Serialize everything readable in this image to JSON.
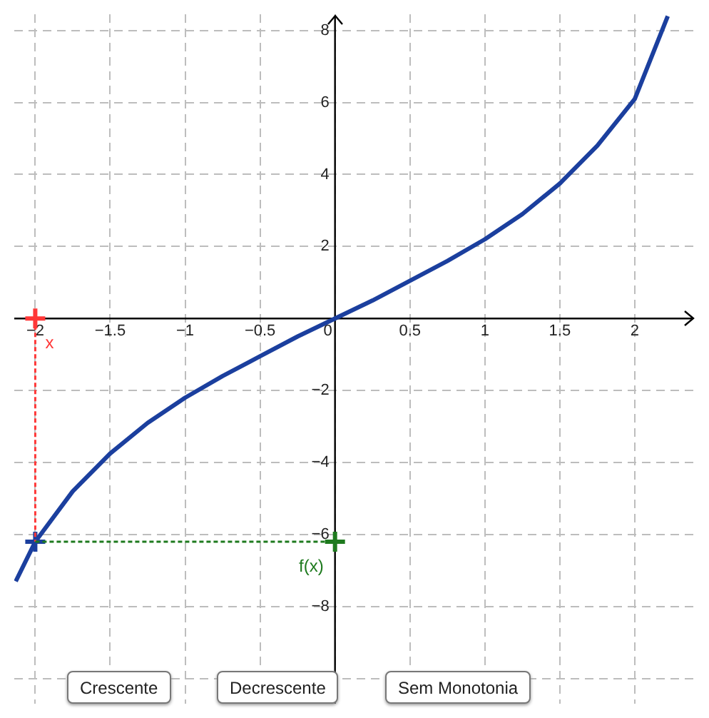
{
  "chart_data": {
    "type": "line",
    "xlim": [
      -2.14,
      2.4
    ],
    "ylim": [
      -10.7,
      8.45
    ],
    "xticks": [
      -2,
      -1.5,
      -1,
      -0.5,
      0,
      0.5,
      1,
      1.5,
      2
    ],
    "yticks": [
      {
        "value": -10,
        "label": null
      },
      -8,
      -6,
      -4,
      -2,
      {
        "value": 0,
        "label": null
      },
      2,
      4,
      6,
      8
    ],
    "grid": true,
    "legend": false,
    "series": [
      {
        "color": "#1b3f9e",
        "marker": "none",
        "line_style": "solid",
        "x": [
          -2.13,
          -2,
          -1.75,
          -1.5,
          -1.25,
          -1,
          -0.75,
          -0.5,
          -0.25,
          0,
          0.25,
          0.5,
          0.75,
          1,
          1.25,
          1.5,
          1.75,
          2,
          2.22
        ],
        "values": [
          -7.3,
          -6.2,
          -4.8,
          -3.75,
          -2.9,
          -2.2,
          -1.6,
          -1.05,
          -0.5,
          0,
          0.5,
          1.05,
          1.6,
          2.2,
          2.9,
          3.75,
          4.8,
          6.1,
          8.4
        ]
      },
      {
        "type": "line",
        "color": "#ff3838",
        "marker": "none",
        "line_style": "dashed",
        "x": [
          -2,
          -2
        ],
        "values": [
          0,
          -6.2
        ]
      },
      {
        "type": "line",
        "color": "#1e7a1e",
        "marker": "none",
        "line_style": "dashed",
        "x": [
          -2,
          0
        ],
        "values": [
          -6.2,
          -6.2
        ]
      },
      {
        "type": "scatter",
        "color": "#ff3838",
        "marker": "cross",
        "x": [
          -2
        ],
        "values": [
          0
        ]
      },
      {
        "type": "scatter",
        "color": "#1b3f9e",
        "marker": "cross",
        "x": [
          -2
        ],
        "values": [
          -6.2
        ]
      },
      {
        "type": "scatter",
        "color": "#1e7a1e",
        "marker": "cross",
        "x": [
          0
        ],
        "values": [
          -6.2
        ]
      }
    ],
    "annotations": [
      {
        "text": "x",
        "x": -2,
        "y": 0
      },
      {
        "text": "f(x)",
        "x": 0,
        "y": -6.2
      },
      "Crescente",
      "Decrescente",
      "Sem Monotonia"
    ]
  }
}
